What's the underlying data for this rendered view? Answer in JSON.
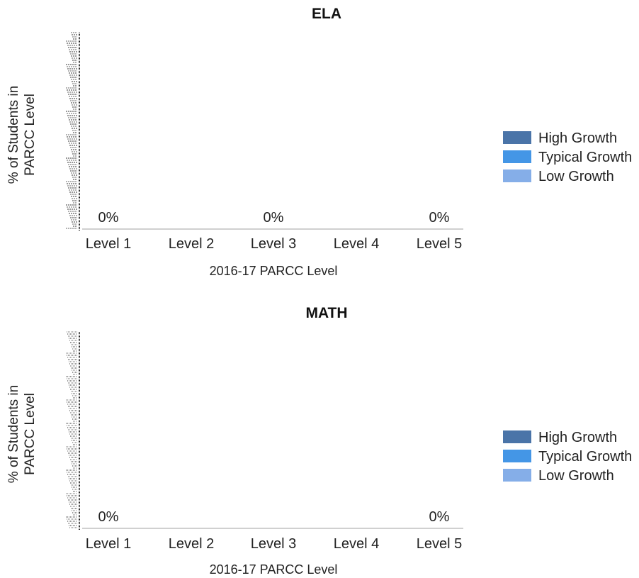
{
  "chart_data": [
    {
      "type": "bar",
      "title": "ELA",
      "xlabel": "2016-17 PARCC Level",
      "ylabel": "% of Students in PARCC Level",
      "categories": [
        "Level 1",
        "Level 2",
        "Level 3",
        "Level 4",
        "Level 5"
      ],
      "series": [
        {
          "name": "High Growth",
          "color": "#4a74a8",
          "values": [
            0,
            null,
            0,
            null,
            0
          ]
        },
        {
          "name": "Typical Growth",
          "color": "#4496e6",
          "values": [
            0,
            null,
            0,
            null,
            0
          ]
        },
        {
          "name": "Low Growth",
          "color": "#85aee8",
          "values": [
            0,
            null,
            0,
            null,
            0
          ]
        }
      ],
      "data_labels": [
        "0%",
        "",
        "0%",
        "",
        "0%"
      ],
      "legend_position": "right"
    },
    {
      "type": "bar",
      "title": "MATH",
      "xlabel": "2016-17 PARCC Level",
      "ylabel": "% of Students in PARCC Level",
      "categories": [
        "Level 1",
        "Level 2",
        "Level 3",
        "Level 4",
        "Level 5"
      ],
      "series": [
        {
          "name": "High Growth",
          "color": "#4a74a8",
          "values": [
            0,
            null,
            null,
            null,
            0
          ]
        },
        {
          "name": "Typical Growth",
          "color": "#4496e6",
          "values": [
            0,
            null,
            null,
            null,
            0
          ]
        },
        {
          "name": "Low Growth",
          "color": "#85aee8",
          "values": [
            0,
            null,
            null,
            null,
            0
          ]
        }
      ],
      "data_labels": [
        "0%",
        "",
        "",
        "",
        "0%"
      ],
      "legend_position": "right"
    }
  ]
}
